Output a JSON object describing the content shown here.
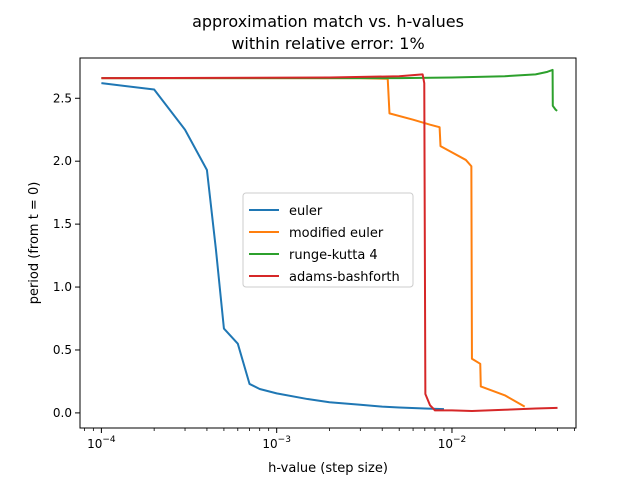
{
  "chart_data": {
    "type": "line",
    "title": "approximation match vs. h-values",
    "subtitle": "within relative error: 1%",
    "xlabel": "h-value (step size)",
    "ylabel": "period (from t = 0)",
    "xscale": "log",
    "xlim": [
      7.55e-05,
      0.051
    ],
    "ylim": [
      -0.12,
      2.82
    ],
    "x_ticks": [
      {
        "value": 0.0001,
        "base": "10",
        "exp": "−4"
      },
      {
        "value": 0.001,
        "base": "10",
        "exp": "−3"
      },
      {
        "value": 0.01,
        "base": "10",
        "exp": "−2"
      }
    ],
    "y_ticks": [
      {
        "value": 0.0,
        "label": "0.0"
      },
      {
        "value": 0.5,
        "label": "0.5"
      },
      {
        "value": 1.0,
        "label": "1.0"
      },
      {
        "value": 1.5,
        "label": "1.5"
      },
      {
        "value": 2.0,
        "label": "2.0"
      },
      {
        "value": 2.5,
        "label": "2.5"
      }
    ],
    "grid": false,
    "legend_position": "center",
    "series": [
      {
        "name": "euler",
        "color": "#1f77b4",
        "points": [
          [
            0.0001,
            2.62
          ],
          [
            0.0002,
            2.57
          ],
          [
            0.0003,
            2.25
          ],
          [
            0.0004,
            1.93
          ],
          [
            0.00045,
            1.3
          ],
          [
            0.0005,
            0.67
          ],
          [
            0.0006,
            0.55
          ],
          [
            0.0007,
            0.23
          ],
          [
            0.0008,
            0.19
          ],
          [
            0.001,
            0.155
          ],
          [
            0.0015,
            0.11
          ],
          [
            0.002,
            0.085
          ],
          [
            0.003,
            0.065
          ],
          [
            0.004,
            0.05
          ],
          [
            0.005,
            0.043
          ],
          [
            0.007,
            0.035
          ],
          [
            0.009,
            0.03
          ]
        ]
      },
      {
        "name": "modified euler",
        "color": "#ff7f0e",
        "points": [
          [
            0.0001,
            2.66
          ],
          [
            0.003,
            2.66
          ],
          [
            0.0043,
            2.655
          ],
          [
            0.0044,
            2.38
          ],
          [
            0.006,
            2.33
          ],
          [
            0.0075,
            2.29
          ],
          [
            0.0085,
            2.27
          ],
          [
            0.0086,
            2.12
          ],
          [
            0.01,
            2.07
          ],
          [
            0.012,
            2.01
          ],
          [
            0.0129,
            1.96
          ],
          [
            0.013,
            0.43
          ],
          [
            0.0145,
            0.39
          ],
          [
            0.0146,
            0.21
          ],
          [
            0.02,
            0.14
          ],
          [
            0.026,
            0.05
          ]
        ]
      },
      {
        "name": "runge-kutta 4",
        "color": "#2ca02c",
        "points": [
          [
            0.0001,
            2.66
          ],
          [
            0.005,
            2.66
          ],
          [
            0.01,
            2.665
          ],
          [
            0.02,
            2.675
          ],
          [
            0.03,
            2.69
          ],
          [
            0.035,
            2.71
          ],
          [
            0.0375,
            2.725
          ],
          [
            0.0376,
            2.44
          ],
          [
            0.039,
            2.41
          ],
          [
            0.0398,
            2.4
          ]
        ]
      },
      {
        "name": "adams-bashforth",
        "color": "#d62728",
        "points": [
          [
            0.0001,
            2.66
          ],
          [
            0.002,
            2.665
          ],
          [
            0.005,
            2.675
          ],
          [
            0.0068,
            2.69
          ],
          [
            0.00695,
            2.62
          ],
          [
            0.00705,
            0.15
          ],
          [
            0.0075,
            0.06
          ],
          [
            0.008,
            0.02
          ],
          [
            0.01,
            0.02
          ],
          [
            0.013,
            0.015
          ],
          [
            0.02,
            0.025
          ],
          [
            0.03,
            0.035
          ],
          [
            0.04,
            0.04
          ]
        ]
      }
    ]
  }
}
